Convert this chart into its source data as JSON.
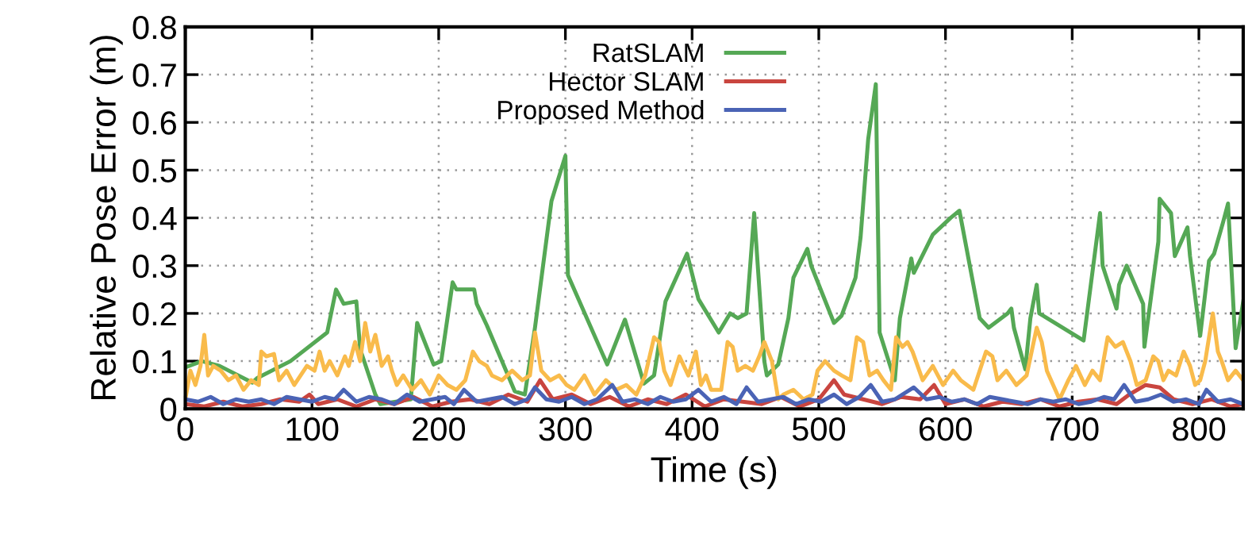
{
  "chart_data": {
    "type": "line",
    "xlabel": "Time (s)",
    "ylabel": "Relative Pose Error (m)",
    "xlim": [
      0,
      835
    ],
    "ylim": [
      0,
      0.8
    ],
    "xticks": [
      0,
      100,
      200,
      300,
      400,
      500,
      600,
      700,
      800
    ],
    "yticks": [
      0,
      0.1,
      0.2,
      0.3,
      0.4,
      0.5,
      0.6,
      0.7,
      0.8
    ],
    "grid": true,
    "legend": "top",
    "line_style": "solid",
    "marker": "none",
    "series": [
      {
        "name": "RatSLAM",
        "color": "#55a855",
        "x": [
          0,
          13,
          27,
          53,
          57,
          83,
          112,
          119,
          125,
          135,
          138,
          150,
          154,
          178,
          183,
          196,
          202,
          211,
          214,
          228,
          230,
          238,
          260,
          268,
          276,
          289,
          300,
          302,
          333,
          347,
          362,
          370,
          379,
          396,
          405,
          421,
          430,
          436,
          443,
          449,
          457,
          459,
          468,
          476,
          480,
          491,
          494,
          512,
          518,
          529,
          533,
          539,
          545,
          548,
          556,
          560,
          564,
          573,
          575,
          590,
          604,
          611,
          627,
          634,
          649,
          652,
          654,
          663,
          667,
          672,
          674,
          709,
          722,
          724,
          735,
          737,
          743,
          756,
          757,
          768,
          769,
          778,
          781,
          791,
          793,
          801,
          808,
          812,
          819,
          823,
          829,
          835
        ],
        "values": [
          0.087,
          0.1,
          0.09,
          0.055,
          0.065,
          0.1,
          0.16,
          0.25,
          0.22,
          0.225,
          0.125,
          0.03,
          0.01,
          0.02,
          0.18,
          0.093,
          0.1,
          0.265,
          0.25,
          0.25,
          0.22,
          0.175,
          0.037,
          0.03,
          0.17,
          0.435,
          0.53,
          0.28,
          0.093,
          0.187,
          0.053,
          0.07,
          0.225,
          0.325,
          0.23,
          0.16,
          0.2,
          0.19,
          0.2,
          0.41,
          0.1,
          0.07,
          0.093,
          0.19,
          0.275,
          0.335,
          0.3,
          0.18,
          0.195,
          0.275,
          0.36,
          0.565,
          0.68,
          0.16,
          0.093,
          0.06,
          0.19,
          0.315,
          0.285,
          0.365,
          0.4,
          0.415,
          0.19,
          0.17,
          0.2,
          0.21,
          0.17,
          0.083,
          0.19,
          0.26,
          0.2,
          0.143,
          0.41,
          0.3,
          0.21,
          0.26,
          0.3,
          0.22,
          0.13,
          0.35,
          0.44,
          0.41,
          0.32,
          0.38,
          0.32,
          0.153,
          0.31,
          0.325,
          0.39,
          0.43,
          0.127,
          0.225
        ]
      },
      {
        "name": "Hector SLAM",
        "color": "#c9453f",
        "x": [
          0,
          15,
          30,
          45,
          60,
          75,
          90,
          98,
          105,
          120,
          135,
          150,
          165,
          180,
          195,
          210,
          225,
          240,
          255,
          270,
          280,
          290,
          305,
          320,
          335,
          350,
          365,
          380,
          395,
          410,
          425,
          440,
          455,
          470,
          485,
          500,
          512,
          520,
          535,
          550,
          565,
          580,
          591,
          600,
          615,
          630,
          645,
          660,
          675,
          690,
          705,
          720,
          735,
          745,
          758,
          769,
          780,
          795,
          810,
          825,
          835
        ],
        "values": [
          0.01,
          0.005,
          0.015,
          0.005,
          0.01,
          0.02,
          0.015,
          0.03,
          0.01,
          0.02,
          0.005,
          0.02,
          0.01,
          0.025,
          0.005,
          0.015,
          0.02,
          0.01,
          0.03,
          0.015,
          0.06,
          0.02,
          0.03,
          0.01,
          0.025,
          0.005,
          0.02,
          0.01,
          0.03,
          0.005,
          0.02,
          0.015,
          0.01,
          0.025,
          0.005,
          0.02,
          0.06,
          0.03,
          0.02,
          0.01,
          0.025,
          0.02,
          0.05,
          0.01,
          0.02,
          0.005,
          0.015,
          0.01,
          0.02,
          0.005,
          0.015,
          0.02,
          0.01,
          0.03,
          0.05,
          0.045,
          0.02,
          0.01,
          0.02,
          0.005,
          0.01
        ]
      },
      {
        "color": "#f9bb4b",
        "x": [
          0,
          4,
          8,
          12,
          15,
          18,
          22,
          28,
          34,
          40,
          46,
          52,
          58,
          60,
          64,
          70,
          74,
          80,
          86,
          91,
          96,
          102,
          106,
          110,
          114,
          120,
          126,
          129,
          134,
          138,
          142,
          146,
          150,
          155,
          160,
          163,
          167,
          172,
          179,
          186,
          193,
          200,
          207,
          214,
          221,
          227,
          232,
          238,
          242,
          250,
          258,
          266,
          272,
          276,
          281,
          288,
          295,
          301,
          307,
          315,
          323,
          332,
          340,
          348,
          356,
          363,
          370,
          374,
          378,
          383,
          390,
          397,
          403,
          407,
          411,
          415,
          423,
          428,
          432,
          436,
          442,
          448,
          453,
          457,
          463,
          468,
          472,
          480,
          488,
          495,
          499,
          505,
          512,
          518,
          525,
          530,
          535,
          540,
          546,
          551,
          557,
          561,
          566,
          570,
          574,
          582,
          590,
          598,
          606,
          612,
          622,
          632,
          637,
          641,
          648,
          656,
          664,
          672,
          676,
          680,
          685,
          690,
          697,
          703,
          710,
          716,
          722,
          728,
          734,
          740,
          746,
          751,
          758,
          764,
          768,
          772,
          776,
          782,
          788,
          793,
          797,
          801,
          805,
          811,
          815,
          818,
          823,
          829,
          835
        ],
        "values": [
          0.02,
          0.08,
          0.05,
          0.09,
          0.155,
          0.07,
          0.09,
          0.08,
          0.06,
          0.07,
          0.04,
          0.06,
          0.05,
          0.12,
          0.11,
          0.115,
          0.06,
          0.08,
          0.05,
          0.07,
          0.09,
          0.08,
          0.12,
          0.08,
          0.1,
          0.07,
          0.11,
          0.09,
          0.14,
          0.1,
          0.18,
          0.12,
          0.155,
          0.09,
          0.11,
          0.08,
          0.05,
          0.07,
          0.04,
          0.06,
          0.03,
          0.07,
          0.05,
          0.04,
          0.06,
          0.12,
          0.1,
          0.09,
          0.07,
          0.06,
          0.08,
          0.06,
          0.07,
          0.16,
          0.08,
          0.06,
          0.07,
          0.05,
          0.04,
          0.07,
          0.03,
          0.06,
          0.04,
          0.05,
          0.03,
          0.07,
          0.15,
          0.14,
          0.08,
          0.05,
          0.11,
          0.07,
          0.12,
          0.05,
          0.07,
          0.04,
          0.04,
          0.14,
          0.13,
          0.08,
          0.09,
          0.08,
          0.11,
          0.14,
          0.1,
          0.02,
          0.03,
          0.04,
          0.02,
          0.03,
          0.08,
          0.1,
          0.08,
          0.07,
          0.06,
          0.15,
          0.14,
          0.07,
          0.08,
          0.06,
          0.04,
          0.15,
          0.13,
          0.14,
          0.12,
          0.06,
          0.09,
          0.05,
          0.08,
          0.06,
          0.04,
          0.12,
          0.11,
          0.06,
          0.08,
          0.05,
          0.07,
          0.17,
          0.14,
          0.08,
          0.05,
          0.02,
          0.06,
          0.09,
          0.05,
          0.08,
          0.06,
          0.15,
          0.13,
          0.14,
          0.1,
          0.05,
          0.06,
          0.11,
          0.1,
          0.06,
          0.08,
          0.07,
          0.12,
          0.09,
          0.05,
          0.06,
          0.1,
          0.2,
          0.12,
          0.1,
          0.06,
          0.08,
          0.06
        ]
      },
      {
        "name": "Proposed Method",
        "color": "#4a63b5",
        "x": [
          0,
          10,
          20,
          30,
          40,
          50,
          60,
          70,
          80,
          90,
          100,
          110,
          118,
          125,
          135,
          145,
          155,
          165,
          175,
          185,
          195,
          205,
          212,
          220,
          230,
          240,
          250,
          260,
          270,
          276,
          285,
          295,
          305,
          315,
          325,
          337,
          345,
          355,
          365,
          375,
          385,
          395,
          405,
          415,
          425,
          435,
          443,
          452,
          462,
          472,
          482,
          492,
          502,
          512,
          522,
          532,
          541,
          550,
          560,
          575,
          585,
          595,
          605,
          615,
          625,
          635,
          645,
          655,
          665,
          675,
          685,
          695,
          705,
          715,
          725,
          733,
          741,
          750,
          760,
          770,
          780,
          790,
          800,
          806,
          815,
          825,
          835
        ],
        "values": [
          0.02,
          0.015,
          0.025,
          0.01,
          0.02,
          0.015,
          0.02,
          0.01,
          0.025,
          0.02,
          0.015,
          0.025,
          0.02,
          0.04,
          0.015,
          0.025,
          0.02,
          0.01,
          0.03,
          0.015,
          0.02,
          0.025,
          0.01,
          0.04,
          0.015,
          0.02,
          0.025,
          0.01,
          0.02,
          0.045,
          0.02,
          0.015,
          0.025,
          0.01,
          0.02,
          0.05,
          0.015,
          0.02,
          0.01,
          0.025,
          0.015,
          0.02,
          0.04,
          0.015,
          0.025,
          0.01,
          0.045,
          0.015,
          0.02,
          0.025,
          0.01,
          0.02,
          0.015,
          0.03,
          0.01,
          0.025,
          0.05,
          0.015,
          0.02,
          0.045,
          0.02,
          0.025,
          0.015,
          0.02,
          0.01,
          0.025,
          0.02,
          0.015,
          0.01,
          0.02,
          0.015,
          0.02,
          0.01,
          0.015,
          0.025,
          0.02,
          0.05,
          0.015,
          0.02,
          0.03,
          0.015,
          0.02,
          0.01,
          0.04,
          0.015,
          0.02,
          0.01
        ]
      }
    ]
  }
}
